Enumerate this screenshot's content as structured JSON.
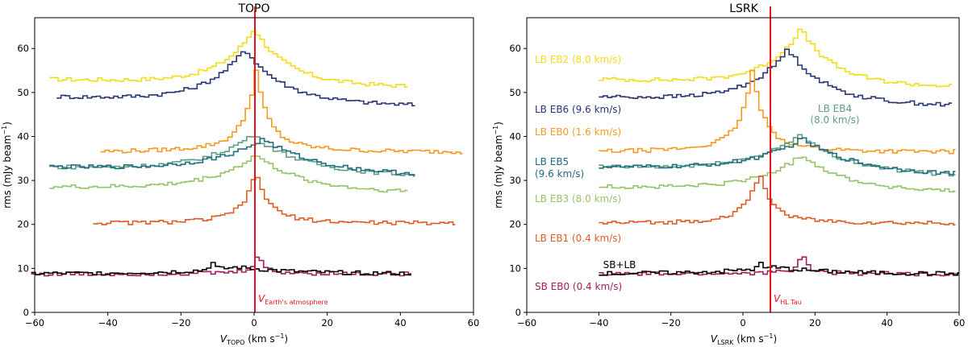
{
  "chart_data": [
    {
      "type": "line",
      "title": "TOPO",
      "xlabel_main": "V",
      "xlabel_sub": "TOPO",
      "xlabel_unit": "(km s",
      "xlabel_unit_sup": "−1",
      "xlabel_unit_close": ")",
      "ylabel": "rms (mJy beam",
      "ylabel_sup": "−1",
      "ylabel_close": ")",
      "xlim": [
        -60,
        60
      ],
      "ylim": [
        0,
        67
      ],
      "xticks": [
        -60,
        -40,
        -20,
        0,
        20,
        40,
        60
      ],
      "yticks": [
        0,
        10,
        20,
        30,
        40,
        50,
        60
      ],
      "vline": {
        "x": 0,
        "label_main": "V",
        "label_sub": "Earth's atmosphere",
        "color": "#e8141c"
      },
      "series": [
        {
          "name": "LB EB2",
          "color": "#f5dc18",
          "x_range": [
            -56,
            42
          ],
          "base": 53,
          "slope": 0.017,
          "peak": 65.5,
          "peak_x": -0.5,
          "width_l": 9,
          "width_r": 9,
          "peak2": 0
        },
        {
          "name": "LB EB6",
          "color": "#2a3578",
          "x_range": [
            -54,
            44
          ],
          "base": 49,
          "slope": 0.02,
          "peak": 61,
          "peak_x": -3,
          "width_l": 10,
          "width_r": 10,
          "peak2": 0
        },
        {
          "name": "LB EB0",
          "color": "#f59a1e",
          "x_range": [
            -42,
            57
          ],
          "base": 36.5,
          "slope": 0.0,
          "peak": 51,
          "peak_x": 0,
          "width_l": 3,
          "width_r": 3,
          "wide_bump": 4,
          "wide_w": 12
        },
        {
          "name": "LB EB4",
          "color": "#5f9e84",
          "x_range": [
            -56,
            44
          ],
          "base": 33,
          "slope": 0.02,
          "peak": 41.5,
          "peak_x": -1,
          "width_l": 13,
          "width_r": 13,
          "peak2": 0
        },
        {
          "name": "LB EB5",
          "color": "#1f6e80",
          "x_range": [
            -56,
            44
          ],
          "base": 33,
          "slope": 0.018,
          "peak": 40.5,
          "peak_x": 2,
          "width_l": 14,
          "width_r": 14,
          "peak2": 0
        },
        {
          "name": "LB EB3",
          "color": "#97c26a",
          "x_range": [
            -56,
            42
          ],
          "base": 28.5,
          "slope": 0.012,
          "peak": 36.5,
          "peak_x": 0,
          "width_l": 12,
          "width_r": 12,
          "peak2": 0
        },
        {
          "name": "LB EB1",
          "color": "#e05c26",
          "x_range": [
            -44,
            55
          ],
          "base": 20.3,
          "slope": 0.0,
          "peak": 29,
          "peak_x": 0,
          "width_l": 3,
          "width_r": 3,
          "wide_bump": 3,
          "wide_w": 10
        },
        {
          "name": "SB EB0",
          "color": "#a51d5e",
          "x_range": [
            -61,
            43
          ],
          "base": 8.7,
          "slope": 0.0,
          "peak": 12.8,
          "peak_x": 0.5,
          "width_l": 1.5,
          "width_r": 1.5,
          "wide_bump": 0.6,
          "wide_w": 15
        },
        {
          "name": "SB+LB",
          "color": "#000000",
          "x_range": [
            -61,
            43
          ],
          "base": 8.8,
          "slope": 0.0,
          "peak": 10.3,
          "peak_x": -5,
          "width_l": 15,
          "width_r": 15,
          "peak2": 11.5,
          "peak2_x": -12,
          "peak2_w": 2
        }
      ]
    },
    {
      "type": "line",
      "title": "LSRK",
      "xlabel_main": "V",
      "xlabel_sub": "LSRK",
      "xlabel_unit": "(km s",
      "xlabel_unit_sup": "−1",
      "xlabel_unit_close": ")",
      "ylabel": "rms (mJy beam",
      "ylabel_sup": "−1",
      "ylabel_close": ")",
      "xlim": [
        -60,
        60
      ],
      "ylim": [
        0,
        67
      ],
      "xticks": [
        -60,
        -40,
        -20,
        0,
        20,
        40,
        60
      ],
      "yticks": [
        0,
        10,
        20,
        30,
        40,
        50,
        60
      ],
      "vline": {
        "x": 7,
        "label_main": "V",
        "label_sub": "HL Tau",
        "color": "#e8141c"
      },
      "series": [
        {
          "name": "LB EB2",
          "color": "#f5dc18",
          "x_range": [
            -40,
            58
          ],
          "base": 53,
          "slope": 0.017,
          "peak": 65.5,
          "peak_x": 15.5,
          "width_l": 9,
          "width_r": 9,
          "peak2": 0
        },
        {
          "name": "LB EB6",
          "color": "#2a3578",
          "x_range": [
            -40,
            58
          ],
          "base": 49,
          "slope": 0.02,
          "peak": 61,
          "peak_x": 12,
          "width_l": 10,
          "width_r": 10,
          "peak2": 0
        },
        {
          "name": "LB EB0",
          "color": "#f59a1e",
          "x_range": [
            -40,
            59
          ],
          "base": 36.5,
          "slope": 0.0,
          "peak": 51,
          "peak_x": 2,
          "width_l": 3,
          "width_r": 3,
          "wide_bump": 4,
          "wide_w": 12
        },
        {
          "name": "LB EB4",
          "color": "#5f9e84",
          "x_range": [
            -40,
            59
          ],
          "base": 33,
          "slope": 0.02,
          "peak": 41.5,
          "peak_x": 15,
          "width_l": 13,
          "width_r": 13,
          "peak2": 0
        },
        {
          "name": "LB EB5",
          "color": "#1f6e80",
          "x_range": [
            -40,
            59
          ],
          "base": 33,
          "slope": 0.018,
          "peak": 40.5,
          "peak_x": 16,
          "width_l": 14,
          "width_r": 14,
          "peak2": 0
        },
        {
          "name": "LB EB3",
          "color": "#97c26a",
          "x_range": [
            -40,
            59
          ],
          "base": 28.5,
          "slope": 0.012,
          "peak": 36.5,
          "peak_x": 16,
          "width_l": 12,
          "width_r": 12,
          "peak2": 0
        },
        {
          "name": "LB EB1",
          "color": "#e05c26",
          "x_range": [
            -40,
            59
          ],
          "base": 20.3,
          "slope": 0.0,
          "peak": 29,
          "peak_x": 4,
          "width_l": 3,
          "width_r": 3,
          "wide_bump": 3,
          "wide_w": 10
        },
        {
          "name": "SB EB0",
          "color": "#a51d5e",
          "x_range": [
            -40,
            60
          ],
          "base": 8.7,
          "slope": 0.0,
          "peak": 12.8,
          "peak_x": 16,
          "width_l": 1.5,
          "width_r": 1.5,
          "wide_bump": 0.6,
          "wide_w": 15
        },
        {
          "name": "SB+LB",
          "color": "#000000",
          "x_range": [
            -40,
            60
          ],
          "base": 8.8,
          "slope": 0.0,
          "peak": 10.3,
          "peak_x": 8,
          "width_l": 15,
          "width_r": 15,
          "peak2": 11.5,
          "peak2_x": 4,
          "peak2_w": 2
        }
      ],
      "legend_labels": [
        {
          "text": "LB EB2 (8.0 km/s)",
          "color": "#f5dc18"
        },
        {
          "text": "LB EB6 (9.6 km/s)",
          "color": "#2a3578"
        },
        {
          "text": "LB EB0 (1.6 km/s)",
          "color": "#f59a1e"
        },
        {
          "text": "LB EB5",
          "color": "#1f6e80"
        },
        {
          "text": "(9.6 km/s)",
          "color": "#1f6e80"
        },
        {
          "text": "LB EB3 (8.0 km/s)",
          "color": "#97c26a"
        },
        {
          "text": "LB EB1 (0.4 km/s)",
          "color": "#e05c26"
        },
        {
          "text": "SB EB0 (0.4 km/s)",
          "color": "#a51d5e"
        },
        {
          "text": "LB EB4",
          "color": "#5f9e84"
        },
        {
          "text": "(8.0 km/s)",
          "color": "#5f9e84"
        },
        {
          "text": "SB+LB",
          "color": "#000000"
        }
      ]
    }
  ]
}
